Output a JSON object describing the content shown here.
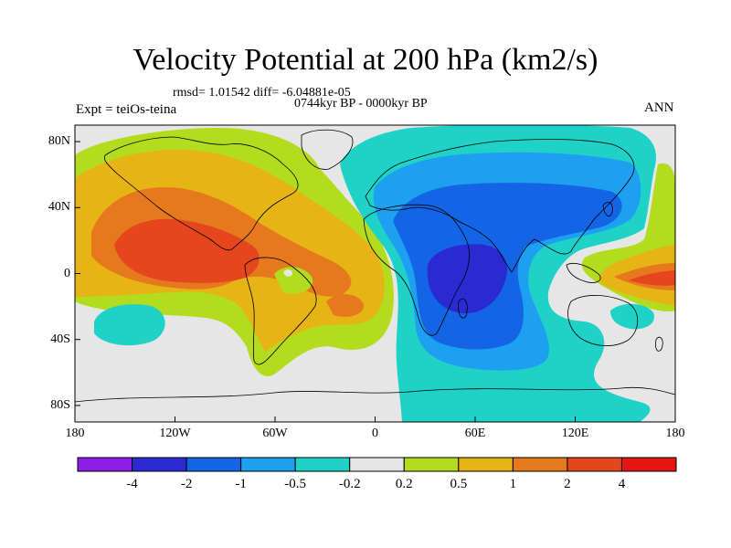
{
  "title": "Velocity Potential at 200 hPa (km2/s)",
  "stats": "rmsd= 1.01542 diff= -6.04881e-05",
  "period": "0744kyr BP - 0000kyr BP",
  "experiment": "Expt = teiOs-teina",
  "season": "ANN",
  "lat_ticks": [
    {
      "label": "80N",
      "lat": 80
    },
    {
      "label": "40N",
      "lat": 40
    },
    {
      "label": "0",
      "lat": 0
    },
    {
      "label": "40S",
      "lat": -40
    },
    {
      "label": "80S",
      "lat": -80
    }
  ],
  "lon_ticks": [
    {
      "label": "180",
      "lon": -180
    },
    {
      "label": "120W",
      "lon": -120
    },
    {
      "label": "60W",
      "lon": -60
    },
    {
      "label": "0",
      "lon": 0
    },
    {
      "label": "60E",
      "lon": 60
    },
    {
      "label": "120E",
      "lon": 120
    },
    {
      "label": "180",
      "lon": 180
    }
  ],
  "colorbar": {
    "colors": [
      "#8c1ee6",
      "#2a2ad2",
      "#1464e6",
      "#1ea0f0",
      "#1ed2c8",
      "#e6e6e6",
      "#b4dc1e",
      "#e6b414",
      "#e6781e",
      "#e6461e",
      "#e61414"
    ],
    "labels": [
      "-4",
      "-2",
      "-1",
      "-0.5",
      "-0.2",
      "0.2",
      "0.5",
      "1",
      "2",
      "4"
    ]
  },
  "fill_colors": {
    "background": "#e6e6e6",
    "pos_02": "#b4dc1e",
    "pos_05": "#e6b414",
    "pos_1": "#e6781e",
    "pos_2": "#e6461e",
    "neg_02": "#1ed2c8",
    "neg_05": "#1ea0f0",
    "neg_1": "#1464e6",
    "neg_2": "#2a2ad2"
  }
}
